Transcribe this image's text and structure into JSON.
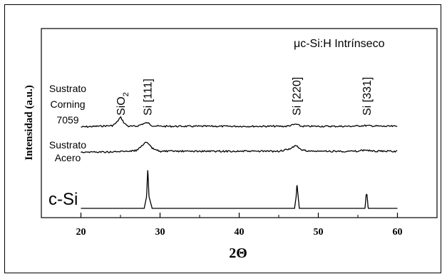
{
  "chart_data": {
    "type": "line",
    "title": "μc-Si:H Intrínseco",
    "xlabel": "2Θ",
    "ylabel": "Intensidad (a.u.)",
    "xlim": [
      15,
      65
    ],
    "xticks": [
      20,
      30,
      40,
      50,
      60
    ],
    "x_tick_labels": [
      "20",
      "30",
      "40",
      "50",
      "60"
    ],
    "grid": false,
    "series": [
      {
        "name": "Sustrato Corning 7059",
        "label_lines": [
          "Sustrato",
          "Corning",
          "7059"
        ],
        "x": [
          20,
          22,
          24,
          24.5,
          25,
          25.5,
          26,
          27,
          28,
          28.4,
          29,
          30,
          34,
          38,
          42,
          46,
          46.8,
          47.2,
          47.8,
          50,
          54,
          56,
          58,
          60
        ],
        "y": [
          0.14,
          0.15,
          0.16,
          0.2,
          0.28,
          0.19,
          0.15,
          0.15,
          0.19,
          0.2,
          0.16,
          0.15,
          0.15,
          0.15,
          0.15,
          0.15,
          0.17,
          0.18,
          0.15,
          0.15,
          0.15,
          0.16,
          0.15,
          0.15
        ]
      },
      {
        "name": "Sustrato Acero",
        "label_lines": [
          "Sustrato",
          "Acero"
        ],
        "x": [
          20,
          24,
          27,
          27.8,
          28.3,
          29,
          30,
          35,
          40,
          45,
          46.5,
          47.1,
          47.8,
          49,
          55,
          56,
          57,
          60
        ],
        "y": [
          0.0,
          0.0,
          0.02,
          0.1,
          0.14,
          0.05,
          0.01,
          0.01,
          0.01,
          0.01,
          0.04,
          0.1,
          0.03,
          0.01,
          0.01,
          0.03,
          0.01,
          0.01
        ]
      },
      {
        "name": "c-Si",
        "label_lines": [
          "c-Si"
        ],
        "x": [
          20,
          28.0,
          28.3,
          28.45,
          28.6,
          29.0,
          47.0,
          47.2,
          47.3,
          47.45,
          47.6,
          55.9,
          56.05,
          56.15,
          56.3,
          60
        ],
        "y": [
          0,
          0,
          0.3,
          1.0,
          0.3,
          0,
          0,
          0.3,
          0.62,
          0.3,
          0,
          0,
          0.35,
          0.35,
          0,
          0
        ]
      }
    ],
    "annotations": [
      {
        "text": "SiO",
        "sub": "2",
        "x": 25.0
      },
      {
        "text": "Si [111]",
        "x": 28.4
      },
      {
        "text": "Si [220]",
        "x": 47.2
      },
      {
        "text": "Si [331]",
        "x": 56.1
      }
    ]
  }
}
